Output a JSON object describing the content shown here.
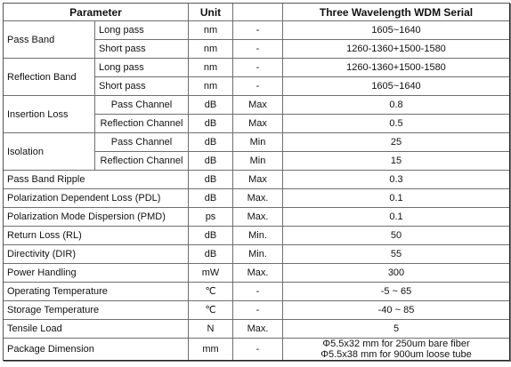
{
  "header": {
    "parameter": "Parameter",
    "unit": "Unit",
    "series": "Three Wavelength WDM Serial"
  },
  "rows": [
    {
      "group": "Pass Band",
      "sub": "Long pass",
      "unit": "nm",
      "qual": "-",
      "value": "1605~1640"
    },
    {
      "sub": "Short pass",
      "unit": "nm",
      "qual": "-",
      "value": "1260-1360+1500-1580"
    },
    {
      "group": "Reflection Band",
      "sub": "Long pass",
      "unit": "nm",
      "qual": "-",
      "value": "1260-1360+1500-1580"
    },
    {
      "sub": "Short pass",
      "unit": "nm",
      "qual": "-",
      "value": "1605~1640"
    },
    {
      "group": "Insertion Loss",
      "sub": "Pass Channel",
      "unit": "dB",
      "qual": "Max",
      "value": "0.8"
    },
    {
      "sub": "Reflection Channel",
      "unit": "dB",
      "qual": "Max",
      "value": "0.5"
    },
    {
      "group": "Isolation",
      "sub": "Pass Channel",
      "unit": "dB",
      "qual": "Min",
      "value": "25"
    },
    {
      "sub": "Reflection Channel",
      "unit": "dB",
      "qual": "Min",
      "value": "15"
    },
    {
      "param": "Pass Band Ripple",
      "unit": "dB",
      "qual": "Max",
      "value": "0.3"
    },
    {
      "param": "Polarization Dependent Loss (PDL)",
      "unit": "dB",
      "qual": "Max.",
      "value": "0.1"
    },
    {
      "param": "Polarization Mode Dispersion (PMD)",
      "unit": "ps",
      "qual": "Max.",
      "value": "0.1"
    },
    {
      "param": "Return Loss (RL)",
      "unit": "dB",
      "qual": "Min.",
      "value": "50"
    },
    {
      "param": "Directivity (DIR)",
      "unit": "dB",
      "qual": "Min.",
      "value": "55"
    },
    {
      "param": "Power Handling",
      "unit": "mW",
      "qual": "Max.",
      "value": "300"
    },
    {
      "param": "Operating Temperature",
      "unit": "℃",
      "qual": "-",
      "value": "-5 ~ 65"
    },
    {
      "param": "Storage Temperature",
      "unit": "℃",
      "qual": "-",
      "value": "-40 ~ 85"
    },
    {
      "param": "Tensile Load",
      "unit": "N",
      "qual": "Max.",
      "value": "5"
    },
    {
      "param": "Package Dimension",
      "unit": "mm",
      "qual": "-",
      "value_lines": [
        "Φ5.5x32 mm for 250um bare fiber",
        "Φ5.5x38 mm for 900um loose tube"
      ]
    }
  ]
}
